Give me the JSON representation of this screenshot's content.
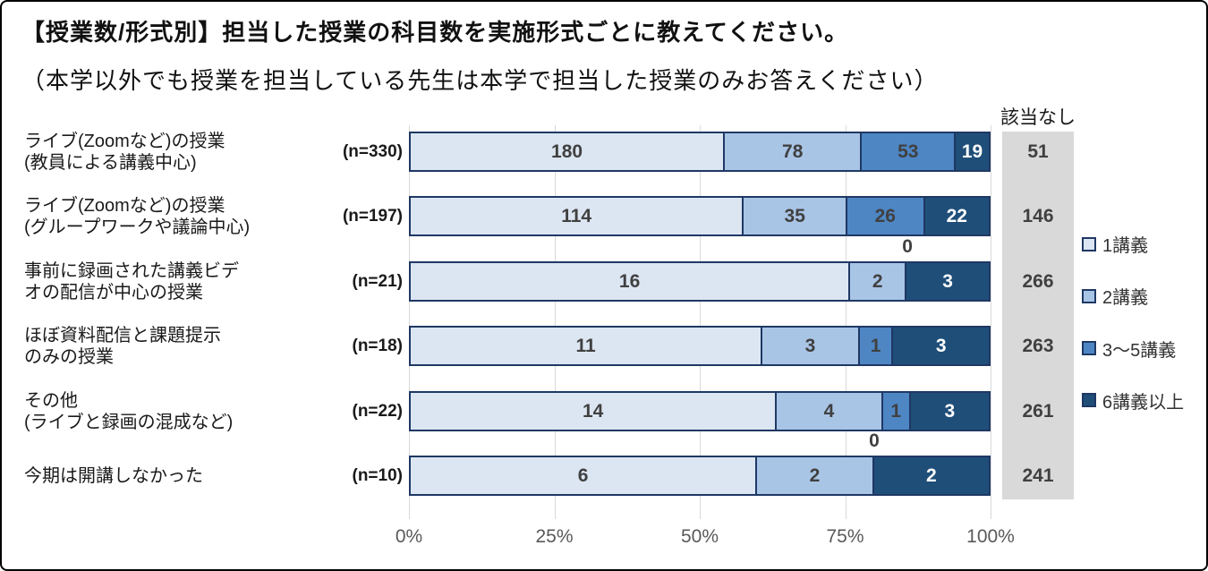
{
  "title": {
    "line1": "【授業数/形式別】担当した授業の科目数を実施形式ごとに教えてください。",
    "line2": "（本学以外でも授業を担当している先生は本学で担当した授業のみお答えください）"
  },
  "colors": {
    "series": [
      "#dce6f2",
      "#a9c5e6",
      "#4e86c4",
      "#1f4e79"
    ],
    "bar_border": "#1f3864",
    "na_background": "#d9d9d9",
    "grid": "#d9d9d9",
    "value_text": "#404040",
    "value_text_on_dark": "#ffffff",
    "axis_text": "#595959"
  },
  "chart_data": {
    "type": "bar",
    "orientation": "horizontal",
    "stacked": true,
    "normalized_to_percent": true,
    "series_labels": [
      "1講義",
      "2講義",
      "3〜5講義",
      "6講義以上"
    ],
    "na_header": "該当なし",
    "x_ticks": [
      "0%",
      "25%",
      "50%",
      "75%",
      "100%"
    ],
    "x_range_percent": [
      0,
      100
    ],
    "legend_position": "right",
    "rows": [
      {
        "label_lines": [
          "ライブ(Zoomなど)の授業",
          "(教員による講義中心)"
        ],
        "n_label": "(n=330)",
        "n": 330,
        "values": [
          180,
          78,
          53,
          19
        ],
        "not_applicable": 51
      },
      {
        "label_lines": [
          "ライブ(Zoomなど)の授業",
          "(グループワークや議論中心)"
        ],
        "n_label": "(n=197)",
        "n": 197,
        "values": [
          114,
          35,
          26,
          22
        ],
        "not_applicable": 146
      },
      {
        "label_lines": [
          "事前に録画された講義ビデ",
          "オの配信が中心の授業"
        ],
        "n_label": "(n=21)",
        "n": 21,
        "values": [
          16,
          2,
          0,
          3
        ],
        "not_applicable": 266
      },
      {
        "label_lines": [
          "ほぼ資料配信と課題提示",
          "のみの授業"
        ],
        "n_label": "(n=18)",
        "n": 18,
        "values": [
          11,
          3,
          1,
          3
        ],
        "not_applicable": 263
      },
      {
        "label_lines": [
          "その他",
          "(ライブと録画の混成など)"
        ],
        "n_label": "(n=22)",
        "n": 22,
        "values": [
          14,
          4,
          1,
          3
        ],
        "not_applicable": 261
      },
      {
        "label_lines": [
          "今期は開講しなかった"
        ],
        "n_label": "(n=10)",
        "n": 10,
        "values": [
          6,
          2,
          0,
          2
        ],
        "not_applicable": 241
      }
    ],
    "zero_annotations": [
      {
        "row_index": 2,
        "series_index": 2,
        "text": "0"
      },
      {
        "row_index": 5,
        "series_index": 2,
        "text": "0"
      }
    ]
  }
}
